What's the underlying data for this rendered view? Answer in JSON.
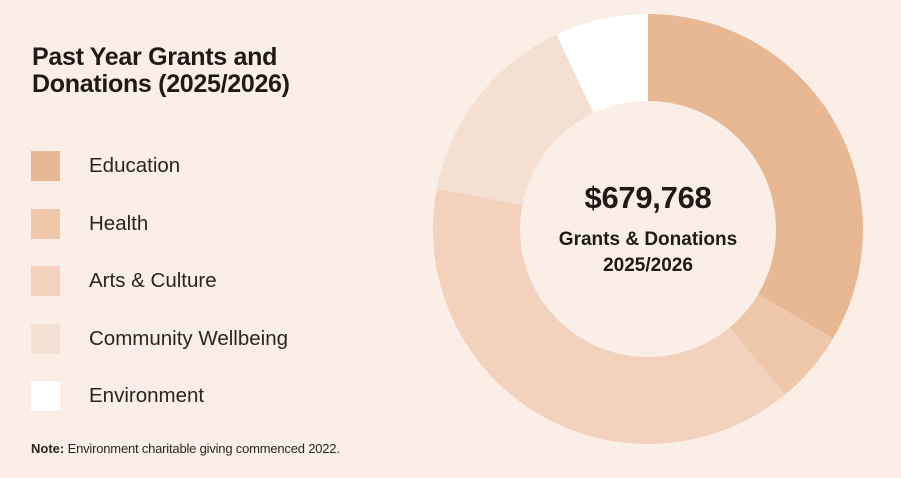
{
  "title": "Past Year Grants and Donations (2025/2026)",
  "note": {
    "prefix": "Note:",
    "text": " Environment charitable giving commenced 2022."
  },
  "center": {
    "value": "$679,768",
    "label_line1": "Grants & Donations",
    "label_line2": "2025/2026"
  },
  "chart_data": {
    "type": "pie",
    "variant": "donut",
    "title": "Past Year Grants and Donations (2025/2026)",
    "total": "$679,768",
    "legend_position": "left",
    "slices": [
      {
        "label": "Education",
        "value": 33.5,
        "color": "#e8b794"
      },
      {
        "label": "Health",
        "value": 5.5,
        "color": "#efc7ab"
      },
      {
        "label": "Arts & Culture",
        "value": 39,
        "color": "#f2d2bd"
      },
      {
        "label": "Community Wellbeing",
        "value": 15,
        "color": "#f3e0d3"
      },
      {
        "label": "Environment",
        "value": 7,
        "color": "#ffffff"
      }
    ]
  }
}
